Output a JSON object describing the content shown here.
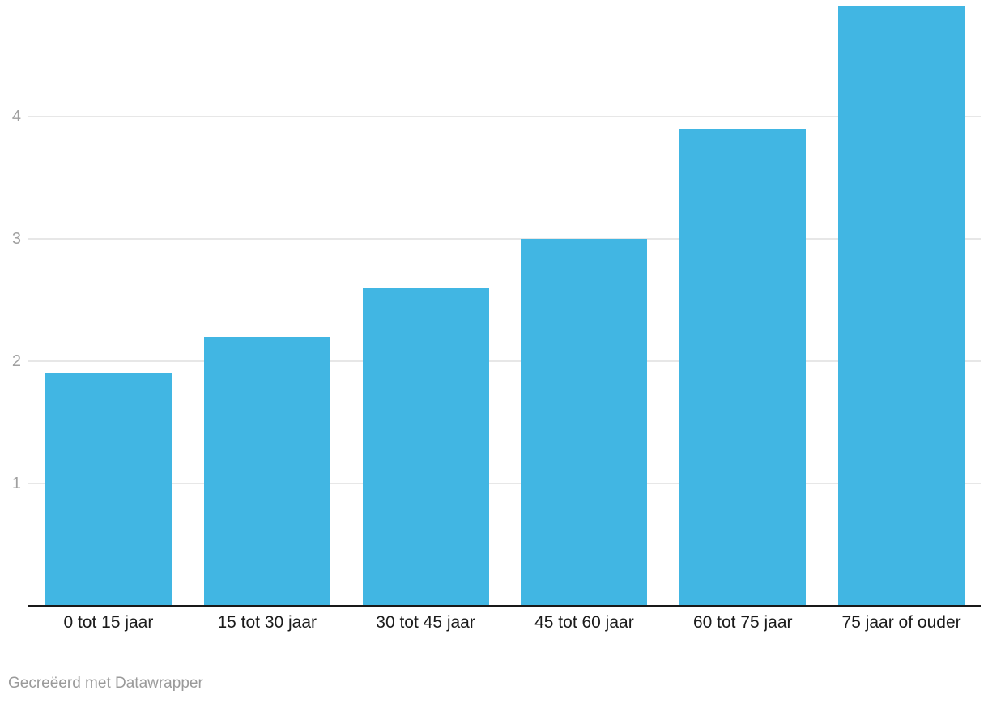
{
  "chart_data": {
    "type": "bar",
    "title": "",
    "xlabel": "",
    "ylabel": "",
    "categories": [
      "0 tot 15 jaar",
      "15 tot 30 jaar",
      "30 tot 45 jaar",
      "45 tot 60 jaar",
      "60 tot 75 jaar",
      "75 jaar of ouder"
    ],
    "values": [
      1.9,
      2.2,
      2.6,
      3.0,
      3.9,
      4.9
    ],
    "yticks": [
      "1",
      "2",
      "3",
      "4"
    ],
    "ylim": [
      0,
      4.95
    ],
    "grid": true,
    "legend_position": "none"
  },
  "colors": {
    "bar": "#41b6e3",
    "gridline": "#e7e7e7",
    "axis_line": "#191919",
    "y_tick_label": "#a0a0a0",
    "category_label": "#1b1b1b",
    "footer_text": "#9a9a9a",
    "background": "#ffffff"
  },
  "footer": {
    "credit": "Gecreëerd met Datawrapper"
  }
}
